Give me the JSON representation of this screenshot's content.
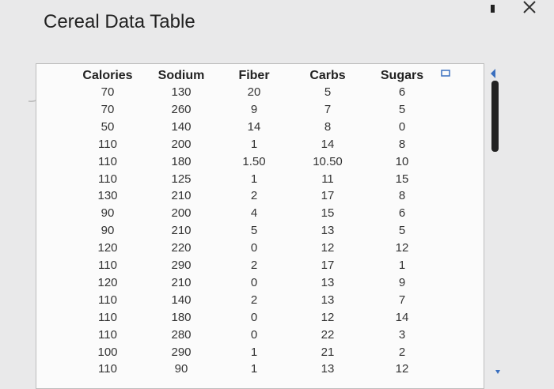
{
  "header": {
    "title": "Cereal Data Table"
  },
  "table": {
    "columns": [
      "Calories",
      "Sodium",
      "Fiber",
      "Carbs",
      "Sugars"
    ],
    "rows": [
      [
        "70",
        "130",
        "20",
        "5",
        "6"
      ],
      [
        "70",
        "260",
        "9",
        "7",
        "5"
      ],
      [
        "50",
        "140",
        "14",
        "8",
        "0"
      ],
      [
        "110",
        "200",
        "1",
        "14",
        "8"
      ],
      [
        "110",
        "180",
        "1.50",
        "10.50",
        "10"
      ],
      [
        "110",
        "125",
        "1",
        "11",
        "15"
      ],
      [
        "130",
        "210",
        "2",
        "17",
        "8"
      ],
      [
        "90",
        "200",
        "4",
        "15",
        "6"
      ],
      [
        "90",
        "210",
        "5",
        "13",
        "5"
      ],
      [
        "120",
        "220",
        "0",
        "12",
        "12"
      ],
      [
        "110",
        "290",
        "2",
        "17",
        "1"
      ],
      [
        "120",
        "210",
        "0",
        "13",
        "9"
      ],
      [
        "110",
        "140",
        "2",
        "13",
        "7"
      ],
      [
        "110",
        "180",
        "0",
        "12",
        "14"
      ],
      [
        "110",
        "280",
        "0",
        "22",
        "3"
      ],
      [
        "100",
        "290",
        "1",
        "21",
        "2"
      ],
      [
        "110",
        "90",
        "1",
        "13",
        "12"
      ]
    ]
  }
}
